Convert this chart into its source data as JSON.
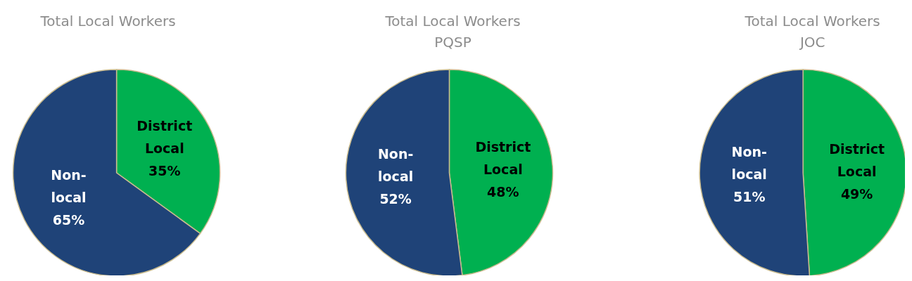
{
  "chart_data": [
    {
      "type": "pie",
      "title": "Total Local Workers",
      "categories": [
        "District Local",
        "Non-local"
      ],
      "values": [
        35,
        65
      ],
      "colors": [
        "#00b050",
        "#1f4378"
      ],
      "value_labels": [
        "35%",
        "65%"
      ],
      "legend": false
    },
    {
      "type": "pie",
      "title": "Total Local Workers\nPQSP",
      "categories": [
        "District Local",
        "Non-local"
      ],
      "values": [
        48,
        52
      ],
      "colors": [
        "#00b050",
        "#1f4378"
      ],
      "value_labels": [
        "48%",
        "52%"
      ],
      "legend": false
    },
    {
      "type": "pie",
      "title": "Total Local Workers\nJOC",
      "categories": [
        "District Local",
        "Non-local"
      ],
      "values": [
        49,
        51
      ],
      "colors": [
        "#00b050",
        "#1f4378"
      ],
      "value_labels": [
        "49%",
        "51%"
      ],
      "legend": false
    }
  ]
}
